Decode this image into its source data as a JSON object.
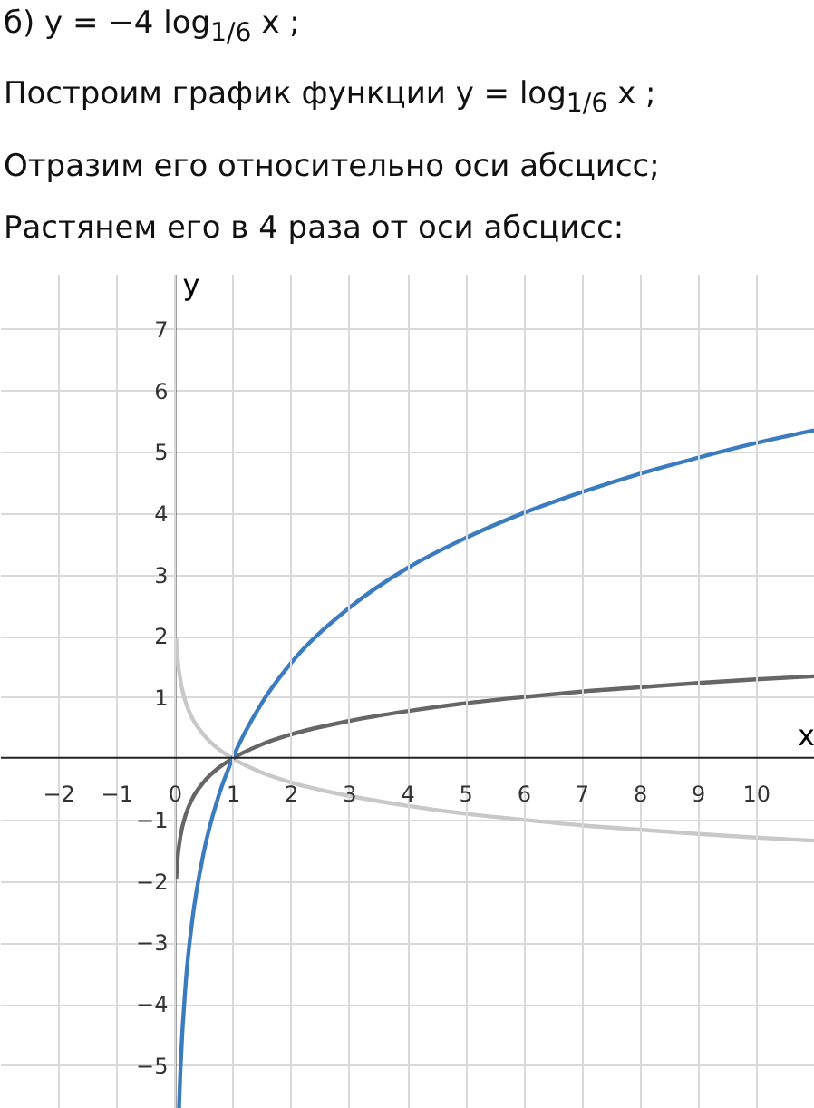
{
  "chart_data": {
    "type": "line",
    "title": "б) y = −4 log$_{1/6}$ x ;",
    "annotations": [
      "Построим график функции y = log$_{1/6}$ x ;",
      "Отразим его относительно оси абсцисс;",
      "Растянем его в 4 раза от оси абсцисс:"
    ],
    "xlabel": "x",
    "ylabel": "y",
    "xlim": [
      -3,
      11
    ],
    "ylim": [
      -6,
      7.9
    ],
    "xticks": [
      -2,
      -1,
      0,
      1,
      2,
      3,
      4,
      5,
      6,
      7,
      8,
      9,
      10
    ],
    "yticks": [
      -5,
      -4,
      -3,
      -2,
      -1,
      1,
      2,
      3,
      4,
      5,
      6,
      7
    ],
    "grid": true,
    "line_style": "solid",
    "marker": "none",
    "series": [
      {
        "color": "#c8c8c8",
        "x": [
          0.03,
          0.05,
          0.1,
          0.2,
          0.3,
          0.5,
          0.75,
          1,
          1.5,
          2,
          3,
          4,
          5,
          6,
          7,
          8,
          9,
          10,
          11
        ],
        "values": [
          1.96,
          1.67,
          1.29,
          0.9,
          0.67,
          0.39,
          0.16,
          0,
          -0.23,
          -0.39,
          -0.61,
          -0.77,
          -0.9,
          -1,
          -1.09,
          -1.16,
          -1.23,
          -1.29,
          -1.34
        ]
      },
      {
        "color": "#666666",
        "x": [
          0.03,
          0.05,
          0.1,
          0.2,
          0.3,
          0.5,
          0.75,
          1,
          1.5,
          2,
          3,
          4,
          5,
          6,
          7,
          8,
          9,
          10,
          11
        ],
        "values": [
          -1.96,
          -1.67,
          -1.29,
          -0.9,
          -0.67,
          -0.39,
          -0.16,
          0,
          0.23,
          0.39,
          0.61,
          0.77,
          0.9,
          1,
          1.09,
          1.16,
          1.23,
          1.29,
          1.34
        ]
      },
      {
        "color": "#3b7bbf",
        "x": [
          0.07,
          0.1,
          0.2,
          0.3,
          0.5,
          0.75,
          1,
          1.5,
          2,
          3,
          4,
          5,
          6,
          7,
          8,
          9,
          10,
          11
        ],
        "values": [
          -5.94,
          -5.14,
          -3.59,
          -2.69,
          -1.55,
          -0.64,
          0,
          0.9,
          1.55,
          2.45,
          3.1,
          3.59,
          4,
          4.34,
          4.64,
          4.9,
          5.14,
          5.35
        ]
      }
    ]
  }
}
